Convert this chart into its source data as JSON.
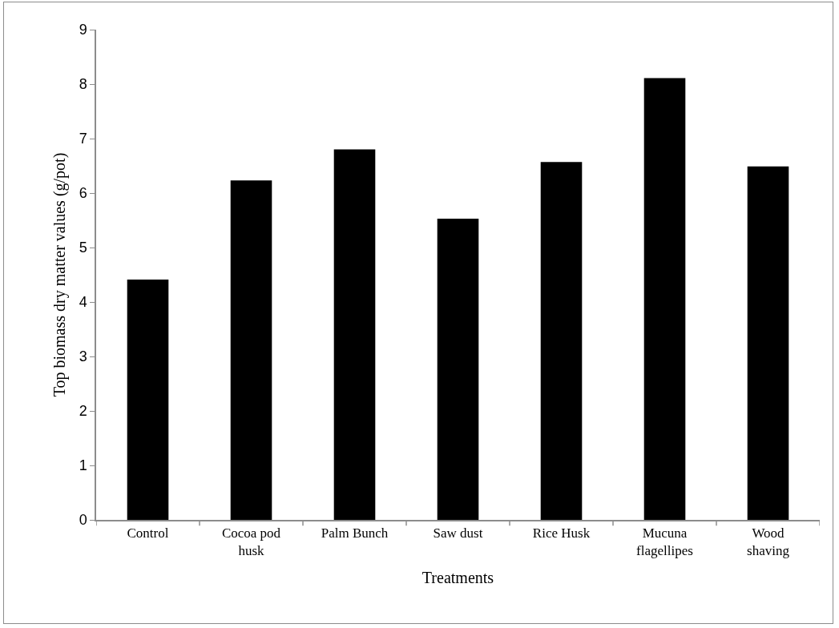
{
  "chart_data": {
    "type": "bar",
    "xlabel": "Treatments",
    "ylabel": "Top biomass dry matter values (g/pot)",
    "categories": [
      "Control",
      "Cocoa pod husk",
      "Palm Bunch",
      "Saw dust",
      "Rice Husk",
      "Mucuna flagellipes",
      "Wood shaving"
    ],
    "values": [
      4.41,
      6.23,
      6.8,
      5.53,
      6.57,
      8.11,
      6.49
    ],
    "color": "#000000",
    "ylim": [
      0,
      9
    ],
    "yticks": [
      0,
      1,
      2,
      3,
      4,
      5,
      6,
      7,
      8,
      9
    ],
    "grid": false
  }
}
